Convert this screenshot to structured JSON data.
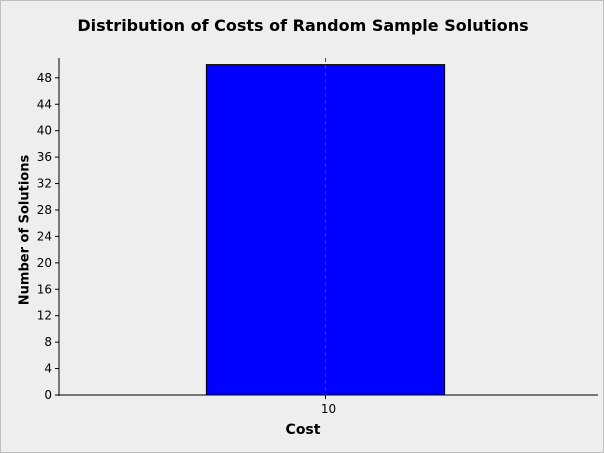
{
  "chart_data": {
    "type": "bar",
    "title": "Distribution of Costs of Random Sample Solutions",
    "xlabel": "Cost",
    "ylabel": "Number of Solutions",
    "categories": [
      "10"
    ],
    "values": [
      50
    ],
    "ylim": [
      0,
      51
    ],
    "yticks": [
      0,
      4,
      8,
      12,
      16,
      20,
      24,
      28,
      32,
      36,
      40,
      44,
      48
    ],
    "reference_line": {
      "x": 10,
      "style": "dashed",
      "color": "#ff0000"
    },
    "bar_color": "#0000ff",
    "grid": false,
    "legend": "none"
  }
}
